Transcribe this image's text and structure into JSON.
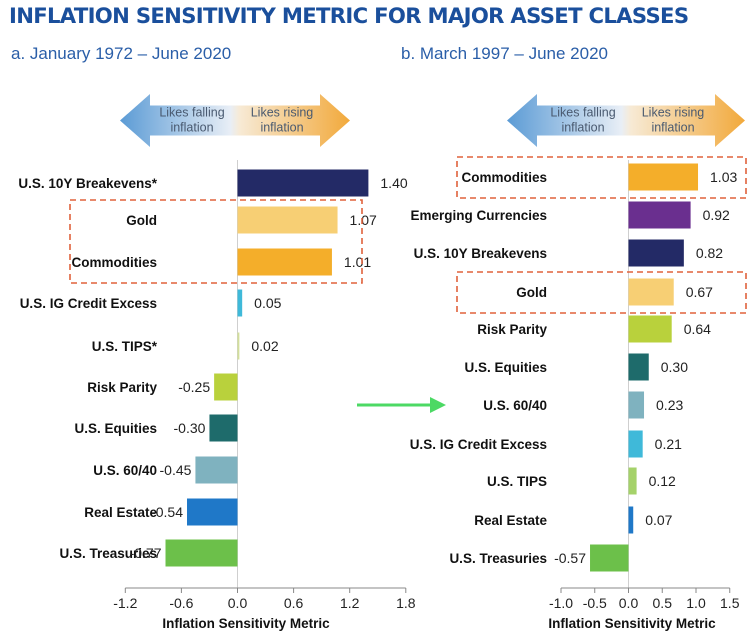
{
  "title": "INFLATION SENSITIVITY METRIC FOR MAJOR ASSET CLASSES",
  "colors": {
    "title": "#1a4f9c",
    "subtitle": "#2a5ea8",
    "arrow_blue": "#5b9bd5",
    "arrow_orange": "#f2a93b",
    "highlight_box": "#e0623c",
    "green_arrow": "#4cd964"
  },
  "chart_data": [
    {
      "type": "bar",
      "orientation": "horizontal",
      "subtitle": "a. January 1972 – June 2020",
      "arrow_left_label": [
        "Likes falling",
        "inflation"
      ],
      "arrow_right_label": [
        "Likes rising",
        "inflation"
      ],
      "categories": [
        "U.S. 10Y Breakevens*",
        "Gold",
        "Commodities",
        "U.S. IG Credit Excess",
        "U.S. TIPS*",
        "Risk Parity",
        "U.S. Equities",
        "U.S. 60/40",
        "Real Estate",
        "U.S. Treasuries"
      ],
      "values": [
        1.4,
        1.07,
        1.01,
        0.05,
        0.02,
        -0.25,
        -0.3,
        -0.45,
        -0.54,
        -0.77
      ],
      "value_labels": [
        "1.40",
        "1.07",
        "1.01",
        "0.05",
        "0.02",
        "-0.25",
        "-0.30",
        "-0.45",
        "-0.54",
        "-0.77"
      ],
      "bar_colors": [
        "#232a66",
        "#f7cf74",
        "#f4ae2a",
        "#3fb9d9",
        "#d3df9b",
        "#b9d13c",
        "#1e6b6b",
        "#7fb2bf",
        "#1f78c8",
        "#6cc04a"
      ],
      "highlight_groups": [
        [
          1,
          2
        ]
      ],
      "xlim": [
        -1.2,
        1.8
      ],
      "xticks": [
        -1.2,
        -0.6,
        0.0,
        0.6,
        1.2,
        1.8
      ],
      "xtick_labels": [
        "-1.2",
        "-0.6",
        "0.0",
        "0.6",
        "1.2",
        "1.8"
      ],
      "xlabel": "Inflation Sensitivity Metric"
    },
    {
      "type": "bar",
      "orientation": "horizontal",
      "subtitle": "b. March 1997 – June 2020",
      "arrow_left_label": [
        "Likes falling",
        "inflation"
      ],
      "arrow_right_label": [
        "Likes rising",
        "inflation"
      ],
      "categories": [
        "Commodities",
        "Emerging Currencies",
        "U.S. 10Y Breakevens",
        "Gold",
        "Risk Parity",
        "U.S. Equities",
        "U.S. 60/40",
        "U.S. IG Credit Excess",
        "U.S. TIPS",
        "Real Estate",
        "U.S. Treasuries"
      ],
      "values": [
        1.03,
        0.92,
        0.82,
        0.67,
        0.64,
        0.3,
        0.23,
        0.21,
        0.12,
        0.07,
        -0.57
      ],
      "value_labels": [
        "1.03",
        "0.92",
        "0.82",
        "0.67",
        "0.64",
        "0.30",
        "0.23",
        "0.21",
        "0.12",
        "0.07",
        "-0.57"
      ],
      "bar_colors": [
        "#f4ae2a",
        "#6a2f8f",
        "#232a66",
        "#f7cf74",
        "#b9d13c",
        "#1e6b6b",
        "#7fb2bf",
        "#3fb9d9",
        "#a5d26a",
        "#1f78c8",
        "#6cc04a"
      ],
      "highlight_groups": [
        [
          0
        ],
        [
          3
        ]
      ],
      "pointer_arrow_row": 6,
      "xlim": [
        -1.0,
        1.5
      ],
      "xticks": [
        -1.0,
        -0.5,
        0.0,
        0.5,
        1.0,
        1.5
      ],
      "xtick_labels": [
        "-1.0",
        "-0.5",
        "0.0",
        "0.5",
        "1.0",
        "1.5"
      ],
      "xlabel": "Inflation Sensitivity Metric"
    }
  ]
}
